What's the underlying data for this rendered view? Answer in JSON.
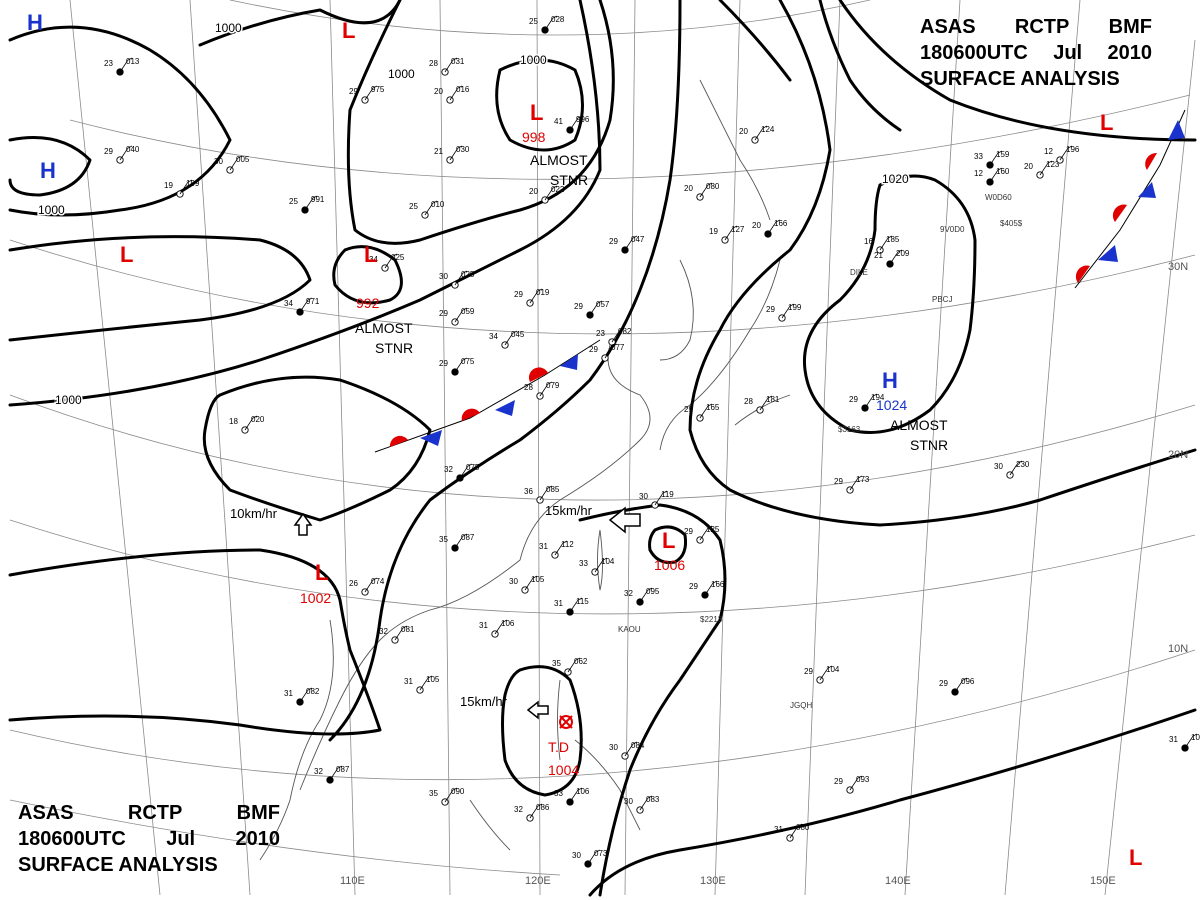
{
  "header": {
    "line1": [
      "ASAS",
      "RCTP",
      "BMF"
    ],
    "line2": [
      "180600UTC",
      "Jul",
      "2010"
    ],
    "line3": "SURFACE ANALYSIS"
  },
  "colors": {
    "isobar": "#000000",
    "low": "#e00000",
    "high": "#1a33cc",
    "cold_front": "#1a33cc",
    "warm_front": "#e00000",
    "geo": "#666666",
    "grid": "#888888"
  },
  "longitude_labels": [
    "110E",
    "120E",
    "130E",
    "140E",
    "150E"
  ],
  "latitude_labels": [
    "30N",
    "20N",
    "10N"
  ],
  "isobar_labels": [
    "1000",
    "1000",
    "1000",
    "1000",
    "1000",
    "1020"
  ],
  "systems": [
    {
      "symbol": "L",
      "type": "low",
      "pressure": "998",
      "note": [
        "ALMOST",
        "STNR"
      ]
    },
    {
      "symbol": "L",
      "type": "low",
      "pressure": "992",
      "note": [
        "ALMOST",
        "STNR"
      ]
    },
    {
      "symbol": "L",
      "type": "low",
      "pressure": "1002",
      "note": []
    },
    {
      "symbol": "L",
      "type": "low",
      "pressure": "1006",
      "note": []
    },
    {
      "symbol": "L",
      "type": "low",
      "pressure": "",
      "note": []
    },
    {
      "symbol": "L",
      "type": "low",
      "pressure": "",
      "note": []
    },
    {
      "symbol": "L",
      "type": "low",
      "pressure": "",
      "note": []
    },
    {
      "symbol": "L",
      "type": "low",
      "pressure": "",
      "note": []
    },
    {
      "symbol": "H",
      "type": "high",
      "pressure": "1024",
      "note": [
        "ALMOST",
        "STNR"
      ]
    },
    {
      "symbol": "H",
      "type": "high",
      "pressure": "",
      "note": []
    },
    {
      "symbol": "H",
      "type": "high",
      "pressure": "",
      "note": []
    },
    {
      "symbol": "T.D",
      "type": "tropical_depression",
      "pressure": "1004",
      "note": []
    }
  ],
  "motion_labels": [
    "10km/hr",
    "15km/hr",
    "15km/hr"
  ],
  "station_codes": [
    "DILE",
    "PBCJ",
    "KAOU",
    "JGQH",
    "$2213",
    "$3163",
    "$405$",
    "9V0D0",
    "W0D60"
  ],
  "stations": [
    {
      "t": "25",
      "p": "028"
    },
    {
      "t": "28",
      "p": "031"
    },
    {
      "t": "29",
      "p": "975"
    },
    {
      "t": "23",
      "p": "013"
    },
    {
      "t": "30",
      "p": "005"
    },
    {
      "t": "21",
      "p": "030"
    },
    {
      "t": "25",
      "p": "991"
    },
    {
      "t": "25",
      "p": "010"
    },
    {
      "t": "20",
      "p": "022"
    },
    {
      "t": "29",
      "p": "047"
    },
    {
      "t": "30",
      "p": "025"
    },
    {
      "t": "34",
      "p": "025"
    },
    {
      "t": "34",
      "p": "971"
    },
    {
      "t": "29",
      "p": "059"
    },
    {
      "t": "29",
      "p": "019"
    },
    {
      "t": "29",
      "p": "057"
    },
    {
      "t": "34",
      "p": "045"
    },
    {
      "t": "23",
      "p": "082"
    },
    {
      "t": "29",
      "p": "075"
    },
    {
      "t": "28",
      "p": "079"
    },
    {
      "t": "18",
      "p": "020"
    },
    {
      "t": "32",
      "p": "075"
    },
    {
      "t": "36",
      "p": "085"
    },
    {
      "t": "29",
      "p": "077"
    },
    {
      "t": "35",
      "p": "087"
    },
    {
      "t": "31",
      "p": "112"
    },
    {
      "t": "33",
      "p": "104"
    },
    {
      "t": "32",
      "p": "095"
    },
    {
      "t": "26",
      "p": "074"
    },
    {
      "t": "30",
      "p": "105"
    },
    {
      "t": "31",
      "p": "115"
    },
    {
      "t": "31",
      "p": "106"
    },
    {
      "t": "32",
      "p": "081"
    },
    {
      "t": "31",
      "p": "082"
    },
    {
      "t": "31",
      "p": "105"
    },
    {
      "t": "35",
      "p": "062"
    },
    {
      "t": "32",
      "p": "087"
    },
    {
      "t": "35",
      "p": "090"
    },
    {
      "t": "32",
      "p": "086"
    },
    {
      "t": "33",
      "p": "106"
    },
    {
      "t": "30",
      "p": "083"
    },
    {
      "t": "30",
      "p": "084"
    },
    {
      "t": "30",
      "p": "073"
    },
    {
      "t": "30",
      "p": "119"
    },
    {
      "t": "29",
      "p": "125"
    },
    {
      "t": "29",
      "p": "166"
    },
    {
      "t": "29",
      "p": "173"
    },
    {
      "t": "29",
      "p": "104"
    },
    {
      "t": "29",
      "p": "096"
    },
    {
      "t": "29",
      "p": "093"
    },
    {
      "t": "31",
      "p": "080"
    },
    {
      "t": "31",
      "p": "106"
    },
    {
      "t": "20",
      "p": "080"
    },
    {
      "t": "19",
      "p": "127"
    },
    {
      "t": "20",
      "p": "166"
    },
    {
      "t": "20",
      "p": "124"
    },
    {
      "t": "16",
      "p": "185"
    },
    {
      "t": "21",
      "p": "209"
    },
    {
      "t": "29",
      "p": "199"
    },
    {
      "t": "28",
      "p": "181"
    },
    {
      "t": "29",
      "p": "194"
    },
    {
      "t": "30",
      "p": "230"
    },
    {
      "t": "29",
      "p": "165"
    },
    {
      "t": "33",
      "p": "159"
    },
    {
      "t": "20",
      "p": "123"
    },
    {
      "t": "12",
      "p": "196"
    },
    {
      "t": "12",
      "p": "160"
    },
    {
      "t": "19",
      "p": "199"
    },
    {
      "t": "29",
      "p": "040"
    },
    {
      "t": "41",
      "p": "996"
    },
    {
      "t": "20",
      "p": "016"
    }
  ]
}
